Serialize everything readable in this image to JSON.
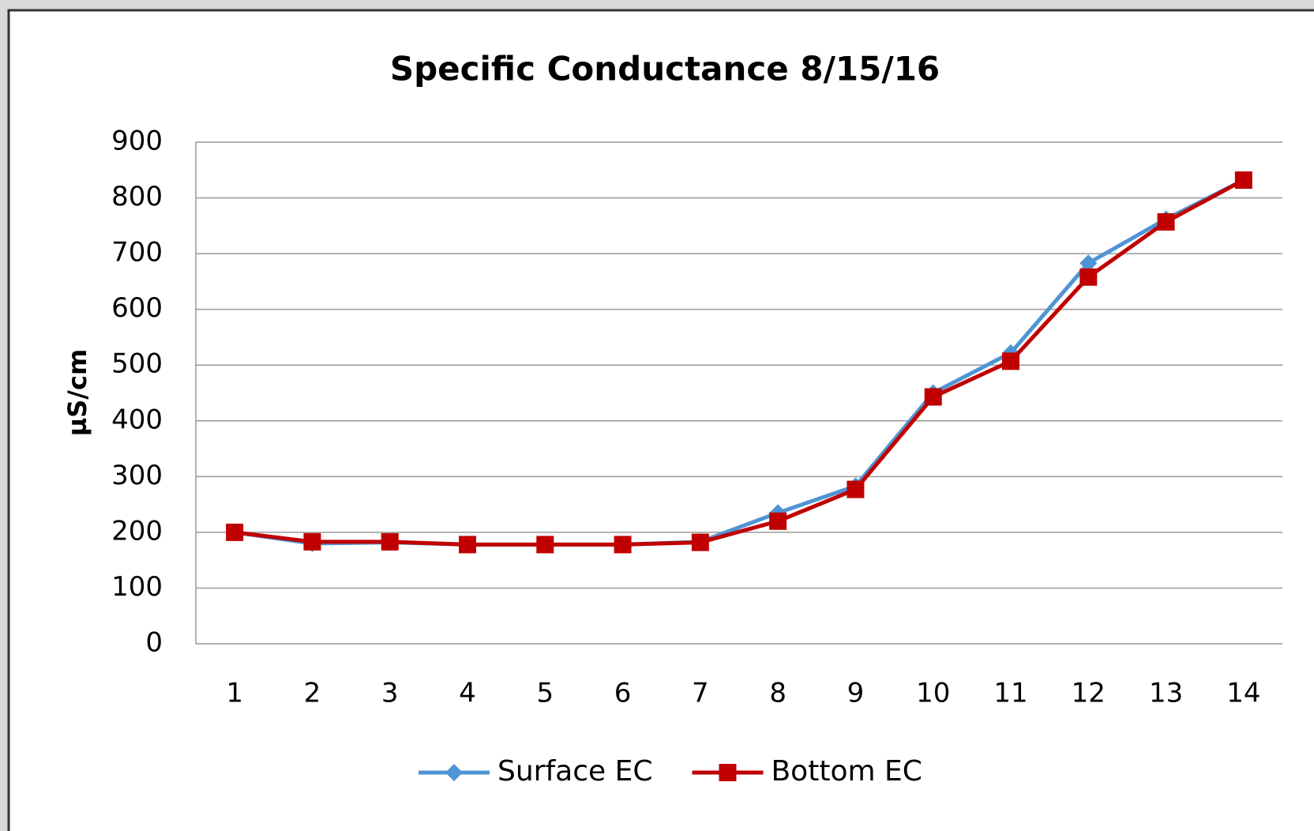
{
  "chart_data": {
    "type": "line",
    "title": "Specific Conductance 8/15/16",
    "y_label": "µS/cm",
    "categories": [
      "1",
      "2",
      "3",
      "4",
      "5",
      "6",
      "7",
      "8",
      "9",
      "10",
      "11",
      "12",
      "13",
      "14"
    ],
    "series": [
      {
        "name": "Surface EC",
        "color": "#4f94d4",
        "marker": "diamond",
        "values": [
          200,
          180,
          182,
          178,
          178,
          178,
          183,
          235,
          283,
          450,
          522,
          683,
          762,
          832
        ]
      },
      {
        "name": "Bottom EC",
        "color": "#c00000",
        "marker": "square",
        "values": [
          200,
          183,
          183,
          178,
          178,
          178,
          182,
          220,
          277,
          443,
          507,
          658,
          757,
          832
        ]
      }
    ],
    "ylim": [
      0,
      900
    ],
    "yticks": [
      0,
      100,
      200,
      300,
      400,
      500,
      600,
      700,
      800,
      900
    ],
    "grid": true,
    "legend": "bottom"
  }
}
